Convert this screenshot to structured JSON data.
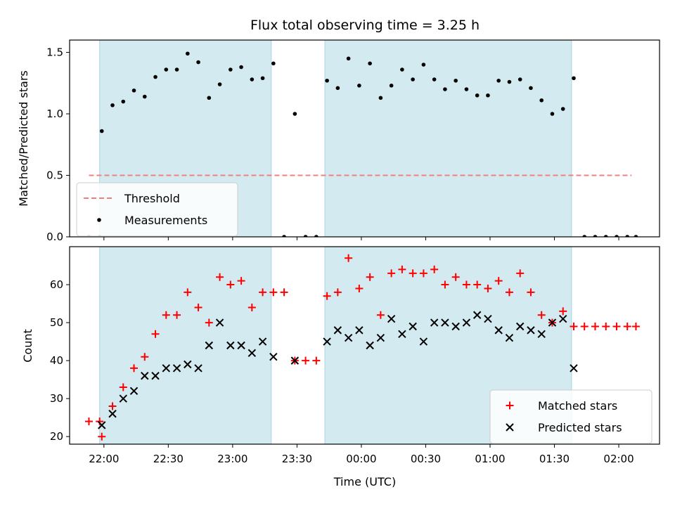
{
  "chart_data": [
    {
      "type": "scatter",
      "title": "Flux total observing time = 3.25 h",
      "xlabel": "",
      "ylabel": "Matched/Predicted stars",
      "ylim": [
        0,
        1.6
      ],
      "yticks": [
        "0.0",
        "0.5",
        "1.0",
        "1.5"
      ],
      "xticks": [
        "22:00",
        "22:30",
        "23:00",
        "23:30",
        "00:00",
        "00:30",
        "01:00",
        "01:30",
        "02:00"
      ],
      "shaded_intervals": [
        [
          "21:58",
          "23:18"
        ],
        [
          "23:43",
          "01:38"
        ]
      ],
      "threshold": {
        "name": "Threshold",
        "value": 0.5,
        "x_range": [
          "21:53",
          "02:06"
        ],
        "color": "#f08080"
      },
      "series": [
        {
          "name": "Measurements",
          "color": "#000000",
          "points": [
            [
              "21:53",
              0.0
            ],
            [
              "21:58",
              0.0
            ],
            [
              "21:59",
              0.86
            ],
            [
              "22:04",
              1.07
            ],
            [
              "22:09",
              1.1
            ],
            [
              "22:14",
              1.19
            ],
            [
              "22:19",
              1.14
            ],
            [
              "22:24",
              1.3
            ],
            [
              "22:29",
              1.36
            ],
            [
              "22:34",
              1.36
            ],
            [
              "22:39",
              1.49
            ],
            [
              "22:44",
              1.42
            ],
            [
              "22:49",
              1.13
            ],
            [
              "22:54",
              1.24
            ],
            [
              "22:59",
              1.36
            ],
            [
              "23:04",
              1.38
            ],
            [
              "23:09",
              1.28
            ],
            [
              "23:14",
              1.29
            ],
            [
              "23:19",
              1.41
            ],
            [
              "23:24",
              0.0
            ],
            [
              "23:29",
              1.0
            ],
            [
              "23:34",
              0.0
            ],
            [
              "23:39",
              0.0
            ],
            [
              "23:44",
              1.27
            ],
            [
              "23:49",
              1.21
            ],
            [
              "23:54",
              1.45
            ],
            [
              "23:59",
              1.23
            ],
            [
              "00:04",
              1.41
            ],
            [
              "00:09",
              1.13
            ],
            [
              "00:14",
              1.23
            ],
            [
              "00:19",
              1.36
            ],
            [
              "00:24",
              1.28
            ],
            [
              "00:29",
              1.4
            ],
            [
              "00:34",
              1.28
            ],
            [
              "00:39",
              1.2
            ],
            [
              "00:44",
              1.27
            ],
            [
              "00:49",
              1.2
            ],
            [
              "00:54",
              1.15
            ],
            [
              "00:59",
              1.15
            ],
            [
              "01:04",
              1.27
            ],
            [
              "01:09",
              1.26
            ],
            [
              "01:14",
              1.28
            ],
            [
              "01:19",
              1.21
            ],
            [
              "01:24",
              1.11
            ],
            [
              "01:29",
              1.0
            ],
            [
              "01:34",
              1.04
            ],
            [
              "01:39",
              1.29
            ],
            [
              "01:44",
              0.0
            ],
            [
              "01:49",
              0.0
            ],
            [
              "01:54",
              0.0
            ],
            [
              "01:59",
              0.0
            ],
            [
              "02:04",
              0.0
            ],
            [
              "02:08",
              0.0
            ]
          ]
        }
      ],
      "legend": [
        "Threshold",
        "Measurements"
      ],
      "legend_position": "lower-left",
      "shade_color": "#d3eaf0"
    },
    {
      "type": "scatter",
      "xlabel": "Time (UTC)",
      "ylabel": "Count",
      "ylim": [
        18,
        70
      ],
      "yticks": [
        "20",
        "30",
        "40",
        "50",
        "60"
      ],
      "xticks": [
        "22:00",
        "22:30",
        "23:00",
        "23:30",
        "00:00",
        "00:30",
        "01:00",
        "01:30",
        "02:00"
      ],
      "shaded_intervals": [
        [
          "21:58",
          "23:18"
        ],
        [
          "23:43",
          "01:38"
        ]
      ],
      "series": [
        {
          "name": "Matched stars",
          "marker": "plus",
          "color": "#ff0000",
          "points": [
            [
              "21:53",
              24
            ],
            [
              "21:58",
              24
            ],
            [
              "21:59",
              20
            ],
            [
              "22:04",
              28
            ],
            [
              "22:09",
              33
            ],
            [
              "22:14",
              38
            ],
            [
              "22:19",
              41
            ],
            [
              "22:24",
              47
            ],
            [
              "22:29",
              52
            ],
            [
              "22:34",
              52
            ],
            [
              "22:39",
              58
            ],
            [
              "22:44",
              54
            ],
            [
              "22:49",
              50
            ],
            [
              "22:54",
              62
            ],
            [
              "22:59",
              60
            ],
            [
              "23:04",
              61
            ],
            [
              "23:09",
              54
            ],
            [
              "23:14",
              58
            ],
            [
              "23:19",
              58
            ],
            [
              "23:24",
              58
            ],
            [
              "23:29",
              40
            ],
            [
              "23:34",
              40
            ],
            [
              "23:39",
              40
            ],
            [
              "23:44",
              57
            ],
            [
              "23:49",
              58
            ],
            [
              "23:54",
              67
            ],
            [
              "23:59",
              59
            ],
            [
              "00:04",
              62
            ],
            [
              "00:09",
              52
            ],
            [
              "00:14",
              63
            ],
            [
              "00:19",
              64
            ],
            [
              "00:24",
              63
            ],
            [
              "00:29",
              63
            ],
            [
              "00:34",
              64
            ],
            [
              "00:39",
              60
            ],
            [
              "00:44",
              62
            ],
            [
              "00:49",
              60
            ],
            [
              "00:54",
              60
            ],
            [
              "00:59",
              59
            ],
            [
              "01:04",
              61
            ],
            [
              "01:09",
              58
            ],
            [
              "01:14",
              63
            ],
            [
              "01:19",
              58
            ],
            [
              "01:24",
              52
            ],
            [
              "01:29",
              50
            ],
            [
              "01:34",
              53
            ],
            [
              "01:39",
              49
            ],
            [
              "01:44",
              49
            ],
            [
              "01:49",
              49
            ],
            [
              "01:54",
              49
            ],
            [
              "01:59",
              49
            ],
            [
              "02:04",
              49
            ],
            [
              "02:08",
              49
            ]
          ]
        },
        {
          "name": "Predicted stars",
          "marker": "x",
          "color": "#000000",
          "points": [
            [
              "21:59",
              23
            ],
            [
              "22:04",
              26
            ],
            [
              "22:09",
              30
            ],
            [
              "22:14",
              32
            ],
            [
              "22:19",
              36
            ],
            [
              "22:24",
              36
            ],
            [
              "22:29",
              38
            ],
            [
              "22:34",
              38
            ],
            [
              "22:39",
              39
            ],
            [
              "22:44",
              38
            ],
            [
              "22:49",
              44
            ],
            [
              "22:54",
              50
            ],
            [
              "22:59",
              44
            ],
            [
              "23:04",
              44
            ],
            [
              "23:09",
              42
            ],
            [
              "23:14",
              45
            ],
            [
              "23:19",
              41
            ],
            [
              "23:29",
              40
            ],
            [
              "23:44",
              45
            ],
            [
              "23:49",
              48
            ],
            [
              "23:54",
              46
            ],
            [
              "23:59",
              48
            ],
            [
              "00:04",
              44
            ],
            [
              "00:09",
              46
            ],
            [
              "00:14",
              51
            ],
            [
              "00:19",
              47
            ],
            [
              "00:24",
              49
            ],
            [
              "00:29",
              45
            ],
            [
              "00:34",
              50
            ],
            [
              "00:39",
              50
            ],
            [
              "00:44",
              49
            ],
            [
              "00:49",
              50
            ],
            [
              "00:54",
              52
            ],
            [
              "00:59",
              51
            ],
            [
              "01:04",
              48
            ],
            [
              "01:09",
              46
            ],
            [
              "01:14",
              49
            ],
            [
              "01:19",
              48
            ],
            [
              "01:24",
              47
            ],
            [
              "01:29",
              50
            ],
            [
              "01:34",
              51
            ],
            [
              "01:39",
              38
            ]
          ]
        }
      ],
      "legend": [
        "Matched stars",
        "Predicted stars"
      ],
      "legend_position": "lower-right",
      "shade_color": "#d3eaf0"
    }
  ]
}
